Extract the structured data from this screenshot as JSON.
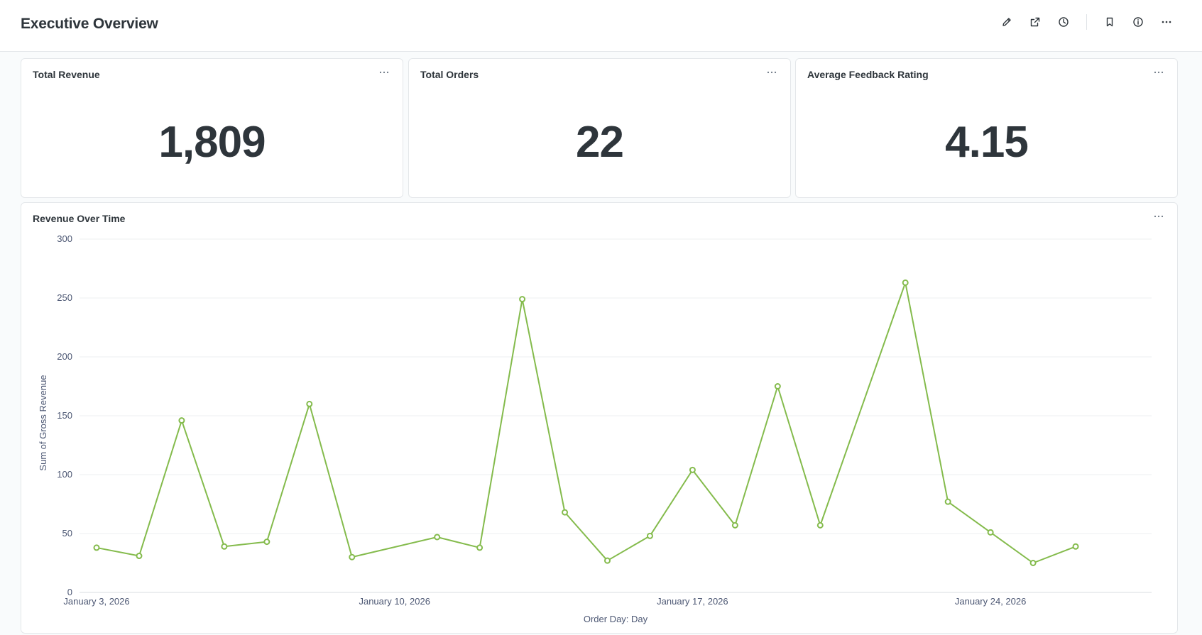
{
  "header": {
    "title": "Executive Overview",
    "actions": [
      {
        "name": "edit-button",
        "icon": "pencil-icon"
      },
      {
        "name": "share-button",
        "icon": "share-icon"
      },
      {
        "name": "history-button",
        "icon": "clock-icon"
      },
      {
        "name": "bookmark-button",
        "icon": "bookmark-icon"
      },
      {
        "name": "info-button",
        "icon": "info-icon"
      },
      {
        "name": "more-button",
        "icon": "more-icon"
      }
    ]
  },
  "scalars": [
    {
      "title": "Total Revenue",
      "value": "1,809"
    },
    {
      "title": "Total Orders",
      "value": "22"
    },
    {
      "title": "Average Feedback Rating",
      "value": "4.15"
    }
  ],
  "chart_card": {
    "title": "Revenue Over Time"
  },
  "colors": {
    "accent": "#84bb4c",
    "text": "#2e353b",
    "muted": "#4c5773",
    "grid": "#eceff2"
  },
  "chart_data": {
    "type": "line",
    "title": "Revenue Over Time",
    "xlabel": "Order Day: Day",
    "ylabel": "Sum of Gross Revenue",
    "ylim": [
      0,
      300
    ],
    "yticks": [
      0,
      50,
      100,
      150,
      200,
      250,
      300
    ],
    "xticks": [
      "2026-01-03",
      "2026-01-10",
      "2026-01-17",
      "2026-01-24"
    ],
    "xtick_labels": [
      "January 3, 2026",
      "January 10, 2026",
      "January 17, 2026",
      "January 24, 2026"
    ],
    "xlim": [
      "2026-01-03",
      "2026-01-27"
    ],
    "grid": true,
    "series": [
      {
        "x": [
          "2026-01-03",
          "2026-01-04",
          "2026-01-05",
          "2026-01-06",
          "2026-01-07",
          "2026-01-08",
          "2026-01-09",
          "2026-01-11",
          "2026-01-12",
          "2026-01-13",
          "2026-01-14",
          "2026-01-15",
          "2026-01-16",
          "2026-01-17",
          "2026-01-18",
          "2026-01-19",
          "2026-01-20",
          "2026-01-22",
          "2026-01-23",
          "2026-01-24",
          "2026-01-25",
          "2026-01-26"
        ],
        "values": [
          38,
          31,
          146,
          39,
          43,
          160,
          30,
          47,
          38,
          249,
          68,
          27,
          48,
          104,
          57,
          175,
          57,
          263,
          77,
          51,
          25,
          39
        ]
      }
    ]
  }
}
